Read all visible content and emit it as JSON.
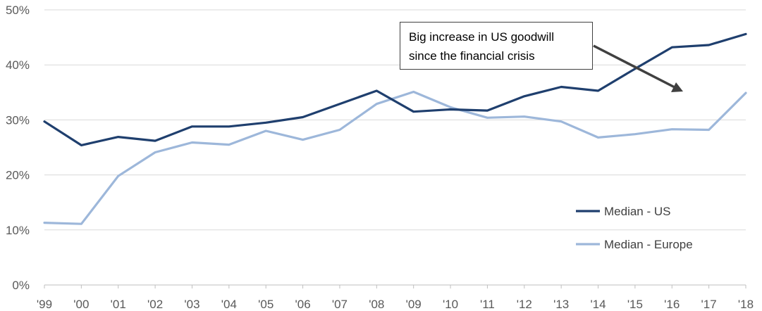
{
  "chart_data": {
    "type": "line",
    "title": "",
    "xlabel": "",
    "ylabel": "",
    "categories": [
      "'99",
      "'00",
      "'01",
      "'02",
      "'03",
      "'04",
      "'05",
      "'06",
      "'07",
      "'08",
      "'09",
      "'10",
      "'11",
      "'12",
      "'13",
      "'14",
      "'15",
      "'16",
      "'17",
      "'18"
    ],
    "y_ticks": [
      "0%",
      "10%",
      "20%",
      "30%",
      "40%",
      "50%"
    ],
    "ylim": [
      0,
      50
    ],
    "grid": "horizontal",
    "legend_position": "bottom-right",
    "series": [
      {
        "name": "Median - US",
        "color": "#1F3F6E",
        "values": [
          29.7,
          25.4,
          26.9,
          26.2,
          28.8,
          28.8,
          29.5,
          30.5,
          32.9,
          35.3,
          31.5,
          31.9,
          31.7,
          34.3,
          36.0,
          35.3,
          39.3,
          43.2,
          43.6,
          45.6
        ]
      },
      {
        "name": "Median - Europe",
        "color": "#9DB7DA",
        "values": [
          11.3,
          11.1,
          19.8,
          24.1,
          25.9,
          25.5,
          28.0,
          26.4,
          28.2,
          32.9,
          35.1,
          32.3,
          30.4,
          30.6,
          29.7,
          26.8,
          27.4,
          28.3,
          28.2,
          34.9
        ]
      }
    ],
    "annotation": {
      "lines": [
        "Big increase in US goodwill",
        "since the financial crisis"
      ],
      "arrow_color": "#404040"
    }
  }
}
